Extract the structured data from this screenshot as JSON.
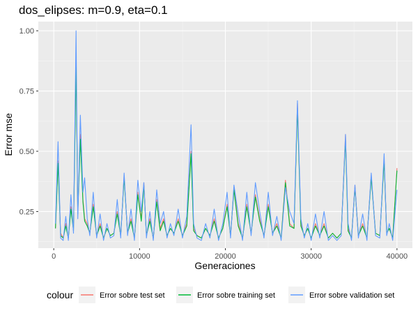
{
  "chart_data": {
    "type": "line",
    "title": "dos_elipses: m=0.9, eta=0.1",
    "xlabel": "Generaciones",
    "ylabel": "Error mse",
    "xlim": [
      -1800,
      41800
    ],
    "ylim": [
      0.098,
      1.038
    ],
    "x_ticks": [
      0,
      10000,
      20000,
      30000,
      40000
    ],
    "x_tick_labels": [
      "0",
      "10000",
      "20000",
      "30000",
      "40000"
    ],
    "y_ticks": [
      0.25,
      0.5,
      0.75,
      1.0
    ],
    "y_tick_labels": [
      "0.25",
      "0.50",
      "0.75",
      "1.00"
    ],
    "grid": true,
    "legend": {
      "title": "colour",
      "position": "bottom"
    },
    "series": [
      {
        "name": "Error sobre test set",
        "color": "#F8766D",
        "x": [
          200,
          500,
          800,
          1100,
          1400,
          1700,
          2000,
          2300,
          2600,
          2800,
          3100,
          3400,
          3600,
          3900,
          4200,
          4600,
          5000,
          5400,
          5800,
          6200,
          6600,
          7000,
          7400,
          7800,
          8200,
          8600,
          9000,
          9400,
          9800,
          10200,
          10500,
          10800,
          11200,
          11600,
          12000,
          12400,
          12800,
          13200,
          13600,
          14000,
          14500,
          15000,
          15500,
          16000,
          16300,
          16700,
          17200,
          17700,
          18200,
          18700,
          19200,
          19700,
          20200,
          20600,
          21000,
          21500,
          22000,
          22500,
          23000,
          23500,
          24000,
          24500,
          25000,
          25500,
          26000,
          26500,
          27000,
          27500,
          28000,
          28400,
          28800,
          29200,
          29600,
          30000,
          30500,
          31000,
          31500,
          32000,
          32500,
          33000,
          33500,
          34000,
          34300,
          34700,
          35100,
          35500,
          36000,
          36500,
          37000,
          37500,
          38000,
          38500,
          38800,
          39100,
          39500,
          40000
        ],
        "values": [
          0.18,
          0.46,
          0.16,
          0.14,
          0.2,
          0.14,
          0.27,
          0.18,
          0.88,
          0.25,
          0.57,
          0.3,
          0.22,
          0.2,
          0.16,
          0.28,
          0.15,
          0.2,
          0.14,
          0.18,
          0.15,
          0.16,
          0.25,
          0.15,
          0.4,
          0.16,
          0.22,
          0.14,
          0.33,
          0.22,
          0.37,
          0.15,
          0.22,
          0.14,
          0.3,
          0.18,
          0.22,
          0.15,
          0.18,
          0.16,
          0.22,
          0.15,
          0.2,
          0.5,
          0.18,
          0.15,
          0.14,
          0.18,
          0.15,
          0.22,
          0.14,
          0.18,
          0.28,
          0.15,
          0.35,
          0.2,
          0.14,
          0.28,
          0.16,
          0.32,
          0.22,
          0.15,
          0.28,
          0.16,
          0.2,
          0.14,
          0.38,
          0.2,
          0.18,
          0.7,
          0.2,
          0.15,
          0.18,
          0.14,
          0.2,
          0.15,
          0.2,
          0.14,
          0.16,
          0.14,
          0.16,
          0.57,
          0.18,
          0.14,
          0.36,
          0.15,
          0.2,
          0.14,
          0.4,
          0.16,
          0.15,
          0.47,
          0.16,
          0.18,
          0.14,
          0.43
        ]
      },
      {
        "name": "Error sobre training set",
        "color": "#00BA38",
        "x": [
          200,
          500,
          800,
          1100,
          1400,
          1700,
          2000,
          2300,
          2600,
          2800,
          3100,
          3400,
          3600,
          3900,
          4200,
          4600,
          5000,
          5400,
          5800,
          6200,
          6600,
          7000,
          7400,
          7800,
          8200,
          8600,
          9000,
          9400,
          9800,
          10200,
          10500,
          10800,
          11200,
          11600,
          12000,
          12400,
          12800,
          13200,
          13600,
          14000,
          14500,
          15000,
          15500,
          16000,
          16300,
          16700,
          17200,
          17700,
          18200,
          18700,
          19200,
          19700,
          20200,
          20600,
          21000,
          21500,
          22000,
          22500,
          23000,
          23500,
          24000,
          24500,
          25000,
          25500,
          26000,
          26500,
          27000,
          27500,
          28000,
          28400,
          28800,
          29200,
          29600,
          30000,
          30500,
          31000,
          31500,
          32000,
          32500,
          33000,
          33500,
          34000,
          34300,
          34700,
          35100,
          35500,
          36000,
          36500,
          37000,
          37500,
          38000,
          38500,
          38800,
          39100,
          39500,
          40000
        ],
        "values": [
          0.18,
          0.45,
          0.15,
          0.14,
          0.19,
          0.14,
          0.26,
          0.17,
          0.85,
          0.24,
          0.55,
          0.29,
          0.21,
          0.19,
          0.16,
          0.27,
          0.15,
          0.19,
          0.14,
          0.18,
          0.15,
          0.16,
          0.24,
          0.15,
          0.39,
          0.16,
          0.21,
          0.14,
          0.32,
          0.21,
          0.36,
          0.15,
          0.21,
          0.14,
          0.29,
          0.17,
          0.21,
          0.15,
          0.18,
          0.16,
          0.21,
          0.15,
          0.19,
          0.49,
          0.17,
          0.15,
          0.14,
          0.18,
          0.15,
          0.21,
          0.14,
          0.18,
          0.27,
          0.15,
          0.34,
          0.19,
          0.14,
          0.27,
          0.16,
          0.31,
          0.21,
          0.15,
          0.27,
          0.16,
          0.19,
          0.14,
          0.37,
          0.19,
          0.18,
          0.68,
          0.19,
          0.15,
          0.18,
          0.14,
          0.19,
          0.15,
          0.19,
          0.14,
          0.16,
          0.14,
          0.16,
          0.55,
          0.17,
          0.14,
          0.35,
          0.15,
          0.19,
          0.14,
          0.39,
          0.16,
          0.15,
          0.46,
          0.16,
          0.18,
          0.14,
          0.42
        ]
      },
      {
        "name": "Error sobre validation set",
        "color": "#619CFF",
        "x": [
          200,
          500,
          800,
          1100,
          1400,
          1700,
          2000,
          2300,
          2600,
          2800,
          3100,
          3400,
          3600,
          3900,
          4200,
          4600,
          5000,
          5400,
          5800,
          6200,
          6600,
          7000,
          7400,
          7800,
          8200,
          8600,
          9000,
          9400,
          9800,
          10200,
          10500,
          10800,
          11200,
          11600,
          12000,
          12400,
          12800,
          13200,
          13600,
          14000,
          14500,
          15000,
          15500,
          16000,
          16300,
          16700,
          17200,
          17700,
          18200,
          18700,
          19200,
          19700,
          20200,
          20600,
          21000,
          21500,
          22000,
          22500,
          23000,
          23500,
          24000,
          24500,
          25000,
          25500,
          26000,
          26500,
          27000,
          27500,
          28000,
          28400,
          28800,
          29200,
          29600,
          30000,
          30500,
          31000,
          31500,
          32000,
          32500,
          33000,
          33500,
          34000,
          34300,
          34700,
          35100,
          35500,
          36000,
          36500,
          37000,
          37500,
          38000,
          38500,
          38800,
          39100,
          39500,
          40000
        ],
        "values": [
          0.2,
          0.54,
          0.14,
          0.13,
          0.23,
          0.13,
          0.32,
          0.16,
          1.0,
          0.22,
          0.65,
          0.33,
          0.39,
          0.22,
          0.15,
          0.33,
          0.14,
          0.24,
          0.13,
          0.2,
          0.14,
          0.15,
          0.3,
          0.14,
          0.41,
          0.15,
          0.26,
          0.13,
          0.38,
          0.25,
          0.37,
          0.14,
          0.25,
          0.13,
          0.34,
          0.2,
          0.25,
          0.14,
          0.2,
          0.15,
          0.26,
          0.14,
          0.23,
          0.61,
          0.2,
          0.14,
          0.13,
          0.2,
          0.14,
          0.26,
          0.13,
          0.2,
          0.33,
          0.14,
          0.36,
          0.24,
          0.13,
          0.33,
          0.15,
          0.37,
          0.25,
          0.14,
          0.33,
          0.15,
          0.23,
          0.13,
          0.35,
          0.25,
          0.2,
          0.71,
          0.22,
          0.14,
          0.2,
          0.13,
          0.24,
          0.14,
          0.25,
          0.13,
          0.15,
          0.13,
          0.15,
          0.57,
          0.2,
          0.13,
          0.36,
          0.14,
          0.24,
          0.13,
          0.41,
          0.15,
          0.14,
          0.49,
          0.15,
          0.2,
          0.13,
          0.34
        ]
      }
    ]
  },
  "colors": {
    "panel_background": "#EBEBEB",
    "grid_major": "#FFFFFF",
    "legend_key_background": "#F2F2F2"
  }
}
